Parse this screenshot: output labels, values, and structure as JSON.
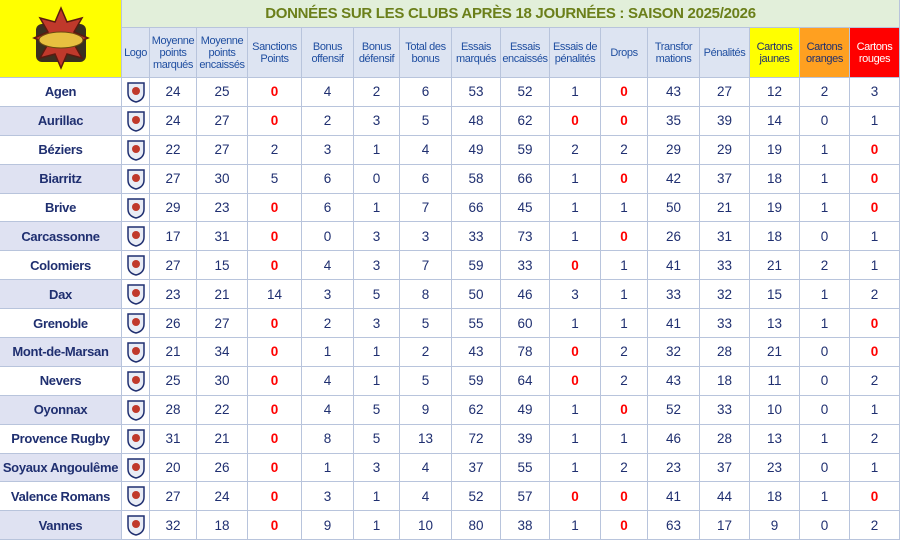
{
  "header": {
    "title": "DONNÉES SUR LES CLUBS APRÈS 18 JOURNÉES : SAISON 2025/2026",
    "columns": [
      "Logo",
      "Moyenne points marqués",
      "Moyenne points encaissés",
      "Sanctions Points",
      "Bonus offensif",
      "Bonus défensif",
      "Total des bonus",
      "Essais marqués",
      "Essais encaissés",
      "Essais de pénalités",
      "Drops",
      "Transfor mations",
      "Pénalités",
      "Cartons jaunes",
      "Cartons oranges",
      "Cartons rouges"
    ]
  },
  "table": {
    "rows": [
      {
        "club": "Agen",
        "values": [
          24,
          25,
          0,
          4,
          2,
          6,
          53,
          52,
          1,
          0,
          43,
          27,
          12,
          2,
          3
        ]
      },
      {
        "club": "Aurillac",
        "values": [
          24,
          27,
          0,
          2,
          3,
          5,
          48,
          62,
          0,
          0,
          35,
          39,
          14,
          0,
          1
        ]
      },
      {
        "club": "Béziers",
        "values": [
          22,
          27,
          2,
          3,
          1,
          4,
          49,
          59,
          2,
          2,
          29,
          29,
          19,
          1,
          0
        ]
      },
      {
        "club": "Biarritz",
        "values": [
          27,
          30,
          5,
          6,
          0,
          6,
          58,
          66,
          1,
          0,
          42,
          37,
          18,
          1,
          0
        ]
      },
      {
        "club": "Brive",
        "values": [
          29,
          23,
          0,
          6,
          1,
          7,
          66,
          45,
          1,
          1,
          50,
          21,
          19,
          1,
          0
        ]
      },
      {
        "club": "Carcassonne",
        "values": [
          17,
          31,
          0,
          0,
          3,
          3,
          33,
          73,
          1,
          0,
          26,
          31,
          18,
          0,
          1
        ]
      },
      {
        "club": "Colomiers",
        "values": [
          27,
          15,
          0,
          4,
          3,
          7,
          59,
          33,
          0,
          1,
          41,
          33,
          21,
          2,
          1
        ]
      },
      {
        "club": "Dax",
        "values": [
          23,
          21,
          14,
          3,
          5,
          8,
          50,
          46,
          3,
          1,
          33,
          32,
          15,
          1,
          2
        ]
      },
      {
        "club": "Grenoble",
        "values": [
          26,
          27,
          0,
          2,
          3,
          5,
          55,
          60,
          1,
          1,
          41,
          33,
          13,
          1,
          0
        ]
      },
      {
        "club": "Mont-de-Marsan",
        "values": [
          21,
          34,
          0,
          1,
          1,
          2,
          43,
          78,
          0,
          2,
          32,
          28,
          21,
          0,
          0
        ]
      },
      {
        "club": "Nevers",
        "values": [
          25,
          30,
          0,
          4,
          1,
          5,
          59,
          64,
          0,
          2,
          43,
          18,
          11,
          0,
          2
        ]
      },
      {
        "club": "Oyonnax",
        "values": [
          28,
          22,
          0,
          4,
          5,
          9,
          62,
          49,
          1,
          0,
          52,
          33,
          10,
          0,
          1
        ]
      },
      {
        "club": "Provence Rugby",
        "values": [
          31,
          21,
          0,
          8,
          5,
          13,
          72,
          39,
          1,
          1,
          46,
          28,
          13,
          1,
          2
        ]
      },
      {
        "club": "Soyaux Angoulême",
        "values": [
          20,
          26,
          0,
          1,
          3,
          4,
          37,
          55,
          1,
          2,
          23,
          37,
          23,
          0,
          1
        ]
      },
      {
        "club": "Valence Romans",
        "values": [
          27,
          24,
          0,
          3,
          1,
          4,
          52,
          57,
          0,
          0,
          41,
          44,
          18,
          1,
          0
        ]
      },
      {
        "club": "Vannes",
        "values": [
          32,
          18,
          0,
          9,
          1,
          10,
          80,
          38,
          1,
          0,
          63,
          17,
          9,
          0,
          2
        ]
      }
    ]
  }
}
